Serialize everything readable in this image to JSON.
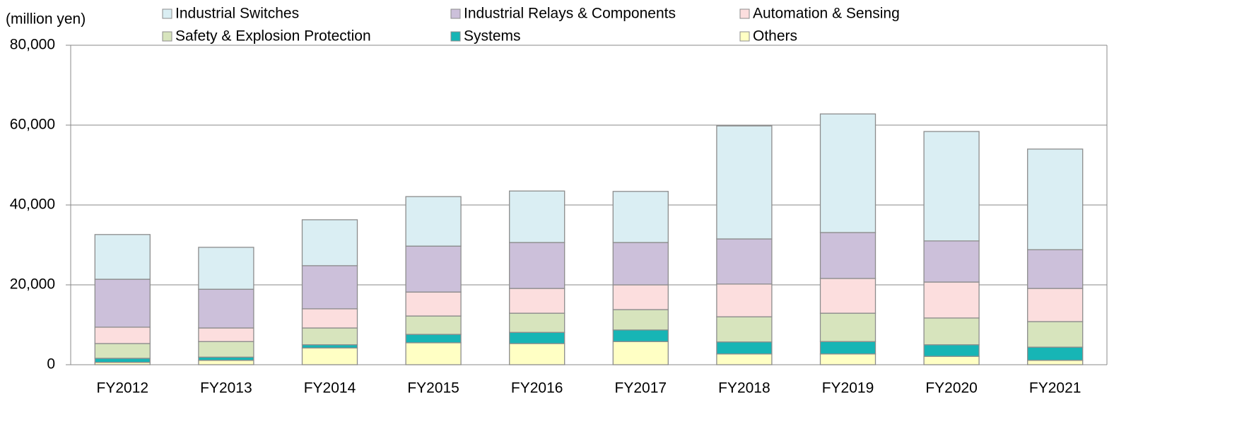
{
  "chart_data": {
    "type": "stacked_bar",
    "y_axis_label": "(million yen)",
    "categories": [
      "FY2012",
      "FY2013",
      "FY2014",
      "FY2015",
      "FY2016",
      "FY2017",
      "FY2018",
      "FY2019",
      "FY2020",
      "FY2021"
    ],
    "series": [
      {
        "name": "Industrial Switches",
        "color": "#daeef3",
        "values": [
          11200,
          10500,
          11500,
          12400,
          12900,
          12800,
          28300,
          29700,
          27400,
          25200
        ]
      },
      {
        "name": "Industrial Relays & Components",
        "color": "#ccc0da",
        "values": [
          12000,
          9700,
          10800,
          11500,
          11500,
          10600,
          11300,
          11500,
          10300,
          9700
        ]
      },
      {
        "name": "Automation & Sensing",
        "color": "#fcdede",
        "values": [
          4100,
          3400,
          4800,
          6000,
          6200,
          6200,
          8200,
          8700,
          9000,
          8300
        ]
      },
      {
        "name": "Safety & Explosion Protection",
        "color": "#d7e4bd",
        "values": [
          3700,
          3900,
          4200,
          4600,
          4800,
          5100,
          6300,
          7100,
          6700,
          6400
        ]
      },
      {
        "name": "Systems",
        "color": "#17b5b5",
        "values": [
          1000,
          800,
          800,
          2100,
          2800,
          2900,
          3000,
          3100,
          2900,
          3300
        ]
      },
      {
        "name": "Others",
        "color": "#ffffc4",
        "values": [
          600,
          1100,
          4200,
          5500,
          5300,
          5800,
          2700,
          2700,
          2100,
          1100
        ]
      }
    ],
    "ylim": [
      0,
      80000
    ],
    "yticks": [
      0,
      {
        "value": 20000,
        "label": "20,000"
      },
      {
        "value": 40000,
        "label": "40,000"
      },
      {
        "value": 60000,
        "label": "60,000"
      },
      {
        "value": 80000,
        "label": "80,000"
      }
    ],
    "grid": true
  }
}
